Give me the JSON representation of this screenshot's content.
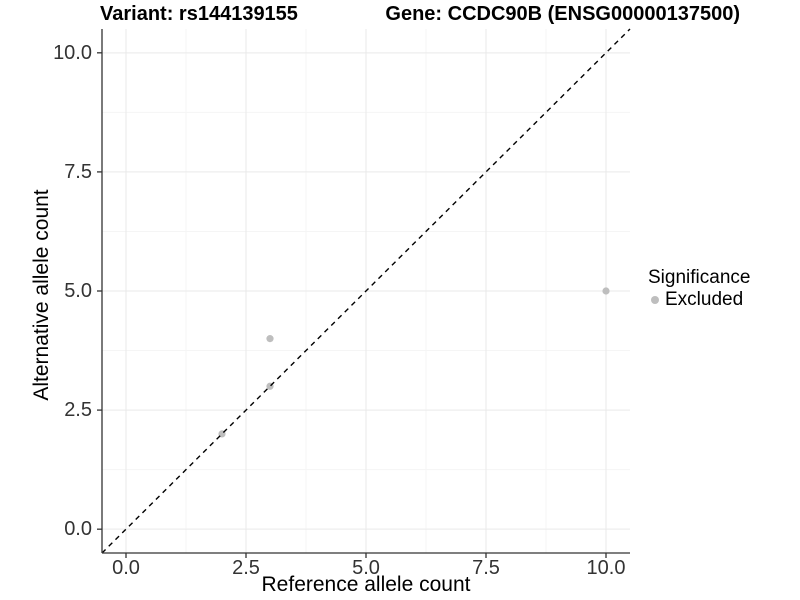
{
  "chart_data": {
    "type": "scatter",
    "title_left": "Variant: rs144139155",
    "title_right": "Gene: CCDC90B (ENSG00000137500)",
    "xlabel": "Reference allele count",
    "ylabel": "Alternative allele count",
    "xlim": [
      -0.5,
      10.5
    ],
    "ylim": [
      -0.5,
      10.5
    ],
    "x_ticks": [
      {
        "value": 0,
        "label": "0.0"
      },
      {
        "value": 2.5,
        "label": "2.5"
      },
      {
        "value": 5,
        "label": "5.0"
      },
      {
        "value": 7.5,
        "label": "7.5"
      },
      {
        "value": 10,
        "label": "10.0"
      }
    ],
    "y_ticks": [
      {
        "value": 0,
        "label": "0.0"
      },
      {
        "value": 2.5,
        "label": "2.5"
      },
      {
        "value": 5,
        "label": "5.0"
      },
      {
        "value": 7.5,
        "label": "7.5"
      },
      {
        "value": 10,
        "label": "10.0"
      }
    ],
    "x_minor_ticks": [
      1.25,
      3.75,
      6.25,
      8.75
    ],
    "y_minor_ticks": [
      1.25,
      3.75,
      6.25,
      8.75
    ],
    "grid": {
      "major_color": "#e9e9e9",
      "minor_color": "#f5f5f5",
      "background": "#ffffff",
      "grid_on": true
    },
    "axis": {
      "line_color": "#333333",
      "tick_color": "#333333",
      "tick_label_color": "#333333",
      "tick_length": 5
    },
    "reference_line": {
      "slope": 1,
      "intercept": 0,
      "style": "dashed",
      "color": "#000000"
    },
    "series": [
      {
        "name": "Excluded",
        "color": "#bebebe",
        "point_radius": 3.6,
        "points": [
          {
            "x": 2,
            "y": 2
          },
          {
            "x": 3,
            "y": 3
          },
          {
            "x": 3,
            "y": 4
          },
          {
            "x": 10,
            "y": 5
          }
        ]
      }
    ],
    "legend": {
      "title": "Significance",
      "position": "right",
      "entries": [
        {
          "label": "Excluded",
          "color": "#bebebe"
        }
      ]
    }
  }
}
